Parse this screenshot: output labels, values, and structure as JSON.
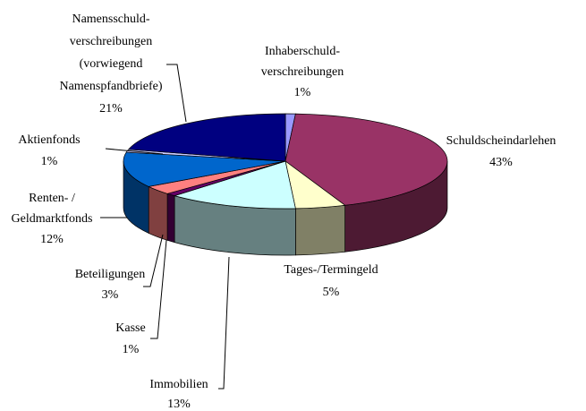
{
  "chart_data": {
    "type": "pie3d",
    "categories": [
      [
        "Inhaberschuld-",
        "verschreibungen"
      ],
      [
        "Schuldscheindarlehen"
      ],
      [
        "Tages-/Termingeld"
      ],
      [
        "Immobilien"
      ],
      [
        "Kasse"
      ],
      [
        "Beteiligungen"
      ],
      [
        "Renten- /",
        "Geldmarktfonds"
      ],
      [
        "Aktienfonds"
      ],
      [
        "Namensschuld-",
        "verschreibungen",
        "(vorwiegend",
        "Namenspfandbriefe)"
      ]
    ],
    "values": [
      1,
      43,
      5,
      13,
      1,
      3,
      12,
      1,
      21
    ],
    "value_labels": [
      "1%",
      "43%",
      "5%",
      "13%",
      "1%",
      "3%",
      "12%",
      "1%",
      "21%"
    ],
    "colors": [
      "#9999ff",
      "#993366",
      "#ffffcc",
      "#ccffff",
      "#660066",
      "#ff8080",
      "#0066cc",
      "#ccccff",
      "#000080"
    ]
  }
}
